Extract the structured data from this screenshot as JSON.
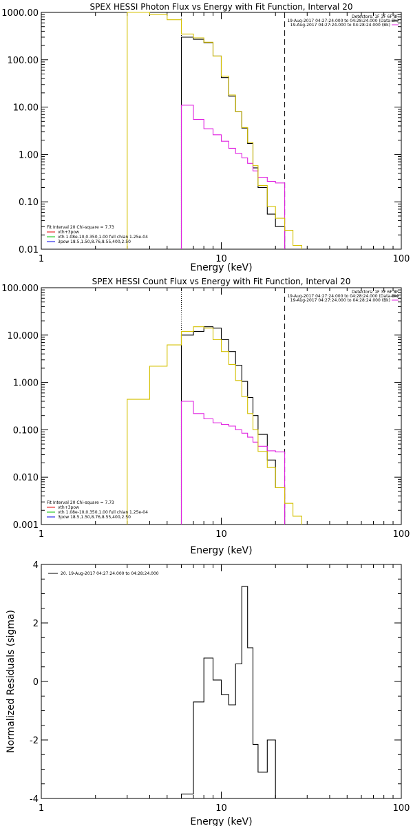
{
  "chart_data": [
    {
      "type": "line",
      "title": "SPEX HESSI Photon Flux vs Energy with Fit Function, Interval 20",
      "xlabel": "Energy (keV)",
      "ylabel": "",
      "xscale": "log",
      "yscale": "log",
      "xlim": [
        1,
        100
      ],
      "ylim": [
        0.01,
        1000
      ],
      "xticks": [
        {
          "v": 1,
          "label": "1"
        },
        {
          "v": 10,
          "label": "10"
        },
        {
          "v": 100,
          "label": "100"
        }
      ],
      "yticks": [
        {
          "v": 0.01,
          "label": "0.01"
        },
        {
          "v": 0.1,
          "label": "0.10"
        },
        {
          "v": 1,
          "label": "1.00"
        },
        {
          "v": 10,
          "label": "10.00"
        },
        {
          "v": 100,
          "label": "100.00"
        },
        {
          "v": 1000,
          "label": "1000.00"
        }
      ],
      "vlines": [
        {
          "x": 6.0,
          "style": "dotted"
        },
        {
          "x": 22.5,
          "style": "dashed"
        }
      ],
      "header_text": [
        "Detectors: 1F 3F 6F 8F",
        "19-Aug-2017 04:27:24.000 to 04:28:24.000 (Data-Bk)",
        "19-Aug-2017 04:27:24.000 to 04:28:24.000 (Bk)"
      ],
      "legend_text": [
        {
          "text": "Fit Interval 20   Chi-square = 7.73",
          "color": ""
        },
        {
          "text": "vth+3pow",
          "color": "#e60000"
        },
        {
          "text": "vth 1.08e-10,0.350,1.00  full chian 1.25e-04",
          "color": "#00c000"
        },
        {
          "text": "3pow 18.5,1.50,8.76,8.55,400,2.50",
          "color": "#0000e6"
        }
      ],
      "series": [
        {
          "color": "#000000",
          "edges": [
            6,
            7,
            8,
            9,
            10,
            11,
            12,
            13,
            14,
            15,
            16,
            18,
            20,
            22.5
          ],
          "values": [
            300,
            270,
            230,
            120,
            42,
            17,
            8,
            3.6,
            1.7,
            0.52,
            0.2,
            0.055,
            0.03
          ]
        },
        {
          "color": "#e020e0",
          "edges": [
            6,
            7,
            8,
            9,
            10,
            11,
            12,
            13,
            14,
            15,
            16,
            18,
            20,
            22.5
          ],
          "values": [
            11,
            5.5,
            3.5,
            2.6,
            1.9,
            1.35,
            1.05,
            0.85,
            0.65,
            0.45,
            0.33,
            0.27,
            0.25
          ]
        },
        {
          "color": "#d4c000",
          "edges": [
            3,
            4,
            5,
            6,
            7,
            8,
            9,
            10,
            11,
            12,
            13,
            14,
            15,
            16,
            18,
            20,
            22.5,
            25,
            28
          ],
          "values": [
            1000,
            900,
            700,
            350,
            290,
            235,
            120,
            45,
            18,
            8,
            3.7,
            1.8,
            0.58,
            0.22,
            0.08,
            0.045,
            0.025,
            0.012
          ]
        }
      ]
    },
    {
      "type": "line",
      "title": "SPEX HESSI Count Flux vs Energy with Fit Function, Interval 20",
      "xlabel": "Energy (keV)",
      "ylabel": "",
      "xscale": "log",
      "yscale": "log",
      "xlim": [
        1,
        100
      ],
      "ylim": [
        0.001,
        100
      ],
      "xticks": [
        {
          "v": 1,
          "label": "1"
        },
        {
          "v": 10,
          "label": "10"
        },
        {
          "v": 100,
          "label": "100"
        }
      ],
      "yticks": [
        {
          "v": 0.001,
          "label": "0.001"
        },
        {
          "v": 0.01,
          "label": "0.010"
        },
        {
          "v": 0.1,
          "label": "0.100"
        },
        {
          "v": 1,
          "label": "1.000"
        },
        {
          "v": 10,
          "label": "10.000"
        },
        {
          "v": 100,
          "label": "100.000"
        }
      ],
      "vlines": [
        {
          "x": 6.0,
          "style": "dotted"
        },
        {
          "x": 22.5,
          "style": "dashed"
        }
      ],
      "header_text": [
        "Detectors: 1F 3F 6F 8F",
        "19-Aug-2017 04:27:24.000 to 04:28:24.000 (Data-Bk)",
        "19-Aug-2017 04:27:24.000 to 04:28:24.000 (Bk)"
      ],
      "legend_text": [
        {
          "text": "Fit Interval 20   Chi-square = 7.73",
          "color": ""
        },
        {
          "text": "vth+3pow",
          "color": "#e60000"
        },
        {
          "text": "vth 1.08e-10,0.350,1.00  full chian 1.25e-04",
          "color": "#00c000"
        },
        {
          "text": "3pow 18.5,1.50,8.76,8.55,400,2.50",
          "color": "#0000e6"
        }
      ],
      "series": [
        {
          "color": "#000000",
          "edges": [
            6,
            7,
            8,
            9,
            10,
            11,
            12,
            13,
            14,
            15,
            16,
            18,
            20,
            22.5
          ],
          "values": [
            10,
            12,
            15,
            14,
            8,
            4.5,
            2.3,
            1.05,
            0.48,
            0.2,
            0.08,
            0.023,
            0.006
          ]
        },
        {
          "color": "#e020e0",
          "edges": [
            6,
            7,
            8,
            9,
            10,
            11,
            12,
            13,
            14,
            15,
            16,
            18,
            20,
            22.5
          ],
          "values": [
            0.4,
            0.22,
            0.17,
            0.14,
            0.13,
            0.12,
            0.1,
            0.085,
            0.07,
            0.055,
            0.045,
            0.036,
            0.034
          ]
        },
        {
          "color": "#d4c000",
          "edges": [
            3,
            4,
            5,
            6,
            7,
            8,
            9,
            10,
            11,
            12,
            13,
            14,
            15,
            16,
            18,
            20,
            22.5,
            25,
            28
          ],
          "values": [
            0.44,
            2.2,
            6.2,
            12,
            15,
            14,
            8,
            4.5,
            2.4,
            1.1,
            0.5,
            0.22,
            0.1,
            0.035,
            0.016,
            0.006,
            0.0028,
            0.0015
          ]
        }
      ]
    },
    {
      "type": "line",
      "title": "",
      "xlabel": "Energy (keV)",
      "ylabel": "Normalized Residuals (sigma)",
      "xscale": "log",
      "yscale": "linear",
      "xlim": [
        1,
        100
      ],
      "ylim": [
        -4,
        4
      ],
      "xticks": [
        {
          "v": 1,
          "label": "1"
        },
        {
          "v": 10,
          "label": "10"
        },
        {
          "v": 100,
          "label": "100"
        }
      ],
      "yticks": [
        {
          "v": -4,
          "label": "-4"
        },
        {
          "v": -2,
          "label": "-2"
        },
        {
          "v": 0,
          "label": "0"
        },
        {
          "v": 2,
          "label": "2"
        },
        {
          "v": 4,
          "label": "4"
        }
      ],
      "legend_text": [
        {
          "text": "20. 19-Aug-2017 04:27:24.000 to 04:28:24.000",
          "color": "#000000"
        }
      ],
      "series": [
        {
          "color": "#000000",
          "edges": [
            6,
            7,
            8,
            9,
            10,
            11,
            12,
            13,
            14,
            15,
            16,
            18,
            20,
            22.5
          ],
          "values": [
            -3.85,
            -0.7,
            0.8,
            0.05,
            -0.45,
            -0.8,
            0.6,
            3.25,
            1.15,
            -2.15,
            -3.1,
            -2.0,
            -4.0
          ]
        }
      ]
    }
  ]
}
